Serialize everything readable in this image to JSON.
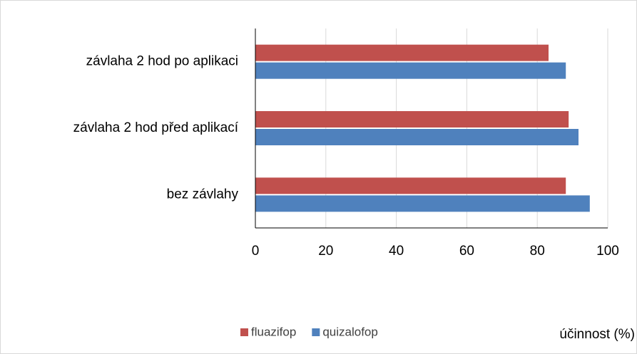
{
  "chart_data": {
    "type": "bar",
    "orientation": "horizontal",
    "x_label": "účinnost (%)",
    "categories": [
      "bez závlahy",
      "závlaha 2 hod před aplikací",
      "závlaha 2 hod po aplikaci"
    ],
    "series": [
      {
        "name": "fluazifop",
        "color": "#c0504d",
        "values": [
          88.1,
          88.9,
          83.2
        ]
      },
      {
        "name": "quizalofop",
        "color": "#4f81bd",
        "values": [
          94.9,
          91.7,
          88.1
        ]
      }
    ],
    "xlim": [
      0,
      100
    ],
    "xticks": [
      0,
      20,
      40,
      60,
      80,
      100
    ],
    "grid": true,
    "legend": "bottom"
  }
}
